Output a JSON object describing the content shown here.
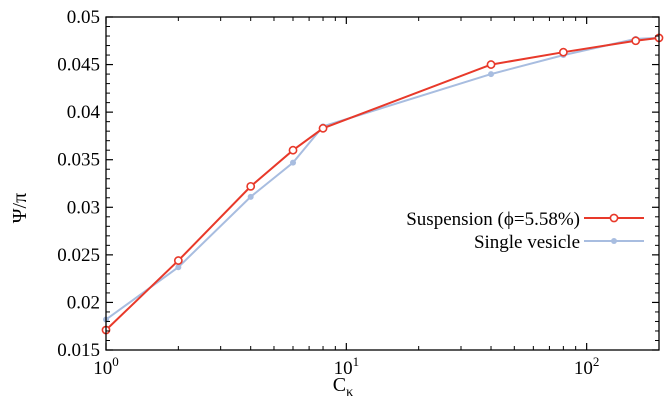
{
  "chart_data": {
    "type": "line",
    "xscale": "log",
    "xlabel": "C",
    "xlabel_sub": "κ",
    "ylabel": "Ψ/π",
    "xlim": [
      1,
      200
    ],
    "ylim": [
      0.015,
      0.05
    ],
    "grid": false,
    "legend_position": "center-right",
    "x_ticks": [
      {
        "value": 1,
        "base": "10",
        "exp": "0"
      },
      {
        "value": 10,
        "base": "10",
        "exp": "1"
      },
      {
        "value": 100,
        "base": "10",
        "exp": "2"
      }
    ],
    "y_ticks": [
      {
        "value": 0.015,
        "label": "0.015"
      },
      {
        "value": 0.02,
        "label": "0.02"
      },
      {
        "value": 0.025,
        "label": "0.025"
      },
      {
        "value": 0.03,
        "label": "0.03"
      },
      {
        "value": 0.035,
        "label": "0.035"
      },
      {
        "value": 0.04,
        "label": "0.04"
      },
      {
        "value": 0.045,
        "label": "0.045"
      },
      {
        "value": 0.05,
        "label": "0.05"
      }
    ],
    "series": [
      {
        "name": "Suspension (ϕ=5.58%)",
        "color": "#e8392a",
        "marker": "open-circle",
        "x": [
          1,
          2,
          4,
          6,
          8,
          40,
          80,
          160,
          200
        ],
        "y": [
          0.0171,
          0.0244,
          0.0322,
          0.036,
          0.0383,
          0.045,
          0.0463,
          0.0475,
          0.0478
        ]
      },
      {
        "name": "Single vesicle",
        "color": "#a8bde0",
        "marker": "filled-circle",
        "x": [
          1,
          2,
          4,
          6,
          8,
          40,
          80,
          160,
          200
        ],
        "y": [
          0.0182,
          0.0237,
          0.0311,
          0.0347,
          0.0385,
          0.044,
          0.046,
          0.0477,
          0.0478
        ]
      }
    ]
  }
}
